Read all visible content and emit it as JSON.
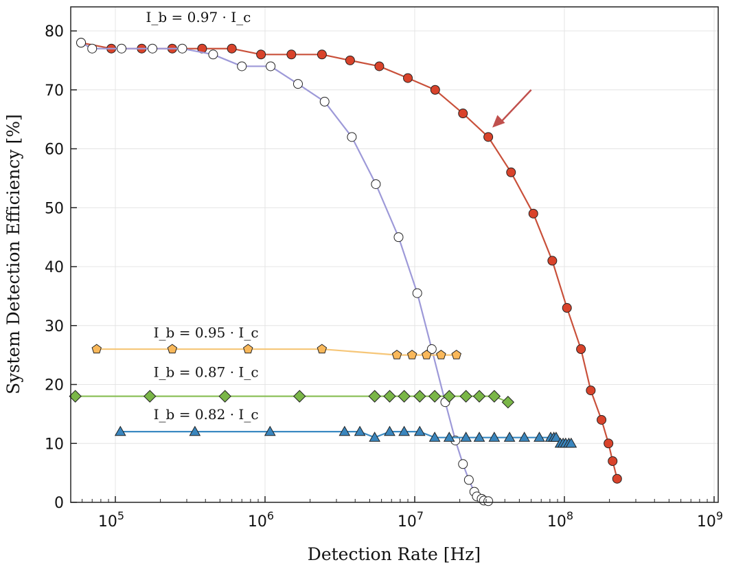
{
  "chart_data": {
    "type": "line",
    "title": "",
    "xlabel": "Detection Rate [Hz]",
    "ylabel": "System Detection Efficiency [%]",
    "xscale": "log",
    "xlim": [
      50000,
      1000000000
    ],
    "ylim": [
      0,
      84
    ],
    "xticks": [
      100000,
      1000000,
      10000000,
      100000000,
      1000000000
    ],
    "xtick_labels": [
      {
        "base": "10",
        "exp": "5"
      },
      {
        "base": "10",
        "exp": "6"
      },
      {
        "base": "10",
        "exp": "7"
      },
      {
        "base": "10",
        "exp": "8"
      },
      {
        "base": "10",
        "exp": "9"
      }
    ],
    "yticks": [
      0,
      10,
      20,
      30,
      40,
      50,
      60,
      70,
      80
    ],
    "ytick_labels": [
      "0",
      "10",
      "20",
      "30",
      "40",
      "50",
      "60",
      "70",
      "80"
    ],
    "grid": true,
    "series": [
      {
        "marker": "circle-filled",
        "color": "#d9432b",
        "line_color": "#c9503a",
        "x": [
          59000.0,
          94000.0,
          150000.0,
          240000.0,
          380000.0,
          600000.0,
          940000.0,
          1500000.0,
          2400000.0,
          3700000.0,
          5800000.0,
          9000000.0,
          13700000.0,
          21000000.0,
          31000000.0,
          44000000.0,
          62000000.0,
          83000000.0,
          104000000.0,
          129000000.0,
          150000000.0,
          177000000.0,
          197000000.0,
          210000000.0,
          225000000.0
        ],
        "y": [
          78,
          77,
          77,
          77,
          77,
          77,
          76,
          76,
          76,
          75,
          74,
          72,
          70,
          66,
          62,
          56,
          49,
          41,
          33,
          26,
          19,
          14,
          10,
          7,
          4
        ]
      },
      {
        "marker": "circle-open",
        "color": "#ffffff",
        "line_color": "#9d99d8",
        "x": [
          59000.0,
          70000.0,
          110000.0,
          177000.0,
          280000.0,
          450000.0,
          700000.0,
          1090000.0,
          1660000.0,
          2500000.0,
          3800000.0,
          5500000.0,
          7800000.0,
          10400000.0,
          13000000.0,
          16000000.0,
          18700000.0,
          21000000.0,
          23000000.0,
          25000000.0,
          26000000.0,
          28000000.0,
          29000000.0,
          31000000.0
        ],
        "y": [
          78,
          77,
          77,
          77,
          77,
          76,
          74,
          74,
          71,
          68,
          62,
          54,
          45,
          35.5,
          26,
          17,
          10.5,
          6.5,
          3.8,
          1.8,
          1,
          0.6,
          0.3,
          0.2
        ]
      },
      {
        "marker": "pentagon",
        "color": "#f9b85a",
        "line_color": "#f6c678",
        "x": [
          75000.0,
          240000.0,
          770000.0,
          2400000.0,
          7600000.0,
          9600000.0,
          12000000.0,
          15000000.0,
          19000000.0
        ],
        "y": [
          26,
          26,
          26,
          26,
          25,
          25,
          25,
          25,
          25
        ]
      },
      {
        "marker": "diamond",
        "color": "#7ab648",
        "line_color": "#8cc05a",
        "x": [
          54000.0,
          170000.0,
          540000.0,
          1700000.0,
          5400000.0,
          6800000.0,
          8500000.0,
          10800000.0,
          13600000.0,
          17000000.0,
          22000000.0,
          27000000.0,
          34000000.0,
          42000000.0
        ],
        "y": [
          18,
          18,
          18,
          18,
          18,
          18,
          18,
          18,
          18,
          18,
          18,
          18,
          18,
          17
        ]
      },
      {
        "marker": "triangle",
        "color": "#3a86be",
        "line_color": "#3a8ac2",
        "x": [
          108000.0,
          340000.0,
          1080000.0,
          3400000.0,
          4300000.0,
          5400000.0,
          6800000.0,
          8500000.0,
          10800000.0,
          13600000.0,
          17000000.0,
          22000000.0,
          27000000.0,
          34000000.0,
          43000000.0,
          54000000.0,
          68000000.0,
          81000000.0,
          85000000.0,
          88000000.0,
          94000000.0,
          98000000.0,
          102000000.0,
          107000000.0,
          111000000.0
        ],
        "y": [
          12,
          12,
          12,
          12,
          12,
          11,
          12,
          12,
          12,
          11,
          11,
          11,
          11,
          11,
          11,
          11,
          11,
          11,
          11,
          11,
          10,
          10,
          10,
          10,
          10
        ]
      }
    ],
    "annotations": [
      {
        "text": "I_b = 0.97 · I_c",
        "x": 160000.0,
        "y": 81.5
      },
      {
        "text": "I_b = 0.95 · I_c",
        "x": 180000.0,
        "y": 28
      },
      {
        "text": "I_b = 0.87 · I_c",
        "x": 180000.0,
        "y": 21.3
      },
      {
        "text": "I_b = 0.82 · I_c",
        "x": 180000.0,
        "y": 14.1
      }
    ],
    "arrow": {
      "color": "#c0504d",
      "from": [
        60000000.0,
        70
      ],
      "to": [
        33000000.0,
        63.6
      ]
    }
  }
}
